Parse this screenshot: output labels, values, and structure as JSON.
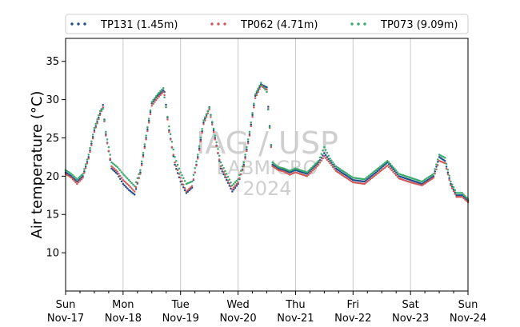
{
  "chart_data": {
    "type": "scatter",
    "title": "",
    "xlabel": "",
    "ylabel": "Air temperature (°C)",
    "ylim": [
      5,
      38
    ],
    "xlim": [
      0,
      7
    ],
    "yticks": [
      10,
      15,
      20,
      25,
      30,
      35
    ],
    "xticks": [
      {
        "day": 0,
        "label1": "Sun",
        "label2": "Nov-17"
      },
      {
        "day": 1,
        "label1": "Mon",
        "label2": "Nov-18"
      },
      {
        "day": 2,
        "label1": "Tue",
        "label2": "Nov-19"
      },
      {
        "day": 3,
        "label1": "Wed",
        "label2": "Nov-20"
      },
      {
        "day": 4,
        "label1": "Thu",
        "label2": "Nov-21"
      },
      {
        "day": 5,
        "label1": "Fri",
        "label2": "Nov-22"
      },
      {
        "day": 6,
        "label1": "Sat",
        "label2": "Nov-23"
      },
      {
        "day": 7,
        "label1": "Sun",
        "label2": "Nov-24"
      }
    ],
    "grid": "vertical",
    "legend_position": "top",
    "watermark": [
      "IAG / USP",
      "LABMICRO",
      "2024"
    ],
    "series": [
      {
        "name": "TP131 (1.45m)",
        "color": "#1f4e8c",
        "x": [
          0.0,
          0.1,
          0.2,
          0.3,
          0.4,
          0.5,
          0.6,
          0.65,
          0.7,
          0.8,
          0.9,
          1.0,
          1.1,
          1.2,
          1.3,
          1.4,
          1.5,
          1.6,
          1.7,
          1.72,
          1.8,
          1.9,
          2.0,
          2.1,
          2.2,
          2.3,
          2.4,
          2.5,
          2.6,
          2.7,
          2.8,
          2.9,
          3.0,
          3.1,
          3.2,
          3.3,
          3.4,
          3.5,
          3.6,
          3.7,
          3.8,
          3.9,
          4.0,
          4.2,
          4.4,
          4.5,
          4.6,
          4.7,
          4.8,
          5.0,
          5.2,
          5.4,
          5.6,
          5.8,
          6.0,
          6.2,
          6.4,
          6.5,
          6.6,
          6.7,
          6.8,
          6.9,
          7.0
        ],
        "y": [
          20.5,
          20.0,
          19.3,
          20.0,
          22.5,
          26.0,
          28.2,
          29.3,
          25.5,
          21.0,
          20.3,
          19.0,
          18.2,
          17.6,
          20.5,
          25.0,
          29.5,
          30.5,
          31.2,
          31.0,
          26.0,
          21.5,
          19.3,
          17.8,
          18.5,
          22.5,
          27.0,
          29.0,
          25.0,
          21.0,
          19.5,
          18.0,
          19.0,
          21.5,
          25.5,
          30.5,
          32.0,
          31.6,
          21.5,
          21.0,
          20.8,
          20.5,
          20.8,
          20.3,
          21.8,
          23.0,
          22.0,
          21.0,
          20.5,
          19.5,
          19.3,
          20.5,
          21.8,
          20.0,
          19.5,
          19.0,
          20.0,
          22.5,
          22.0,
          19.0,
          17.5,
          17.5,
          16.8
        ]
      },
      {
        "name": "TP062 (4.71m)",
        "color": "#d05a5a",
        "x": [
          0.0,
          0.1,
          0.2,
          0.3,
          0.4,
          0.5,
          0.6,
          0.65,
          0.7,
          0.8,
          0.9,
          1.0,
          1.1,
          1.2,
          1.3,
          1.4,
          1.5,
          1.6,
          1.7,
          1.72,
          1.8,
          1.9,
          2.0,
          2.1,
          2.2,
          2.3,
          2.4,
          2.5,
          2.6,
          2.7,
          2.8,
          2.9,
          3.0,
          3.1,
          3.2,
          3.3,
          3.4,
          3.5,
          3.6,
          3.7,
          3.8,
          3.9,
          4.0,
          4.2,
          4.4,
          4.5,
          4.6,
          4.7,
          4.8,
          5.0,
          5.2,
          5.4,
          5.6,
          5.8,
          6.0,
          6.2,
          6.4,
          6.5,
          6.6,
          6.7,
          6.8,
          6.9,
          7.0
        ],
        "y": [
          20.3,
          19.8,
          19.0,
          19.8,
          22.3,
          25.8,
          28.0,
          29.0,
          25.3,
          21.3,
          20.6,
          19.5,
          18.8,
          18.0,
          20.3,
          24.8,
          29.2,
          30.2,
          31.0,
          30.6,
          25.8,
          21.8,
          19.8,
          18.0,
          18.7,
          22.3,
          26.8,
          28.7,
          24.8,
          21.3,
          19.8,
          18.3,
          19.2,
          21.3,
          25.3,
          30.2,
          31.8,
          31.3,
          21.3,
          20.8,
          20.6,
          20.2,
          20.5,
          20.0,
          21.5,
          22.6,
          21.7,
          20.7,
          20.2,
          19.2,
          19.0,
          20.2,
          21.4,
          19.7,
          19.2,
          18.8,
          19.8,
          22.0,
          21.7,
          18.8,
          17.3,
          17.3,
          16.6
        ]
      },
      {
        "name": "TP073 (9.09m)",
        "color": "#3aaa6e",
        "x": [
          0.0,
          0.1,
          0.2,
          0.3,
          0.4,
          0.5,
          0.6,
          0.65,
          0.7,
          0.8,
          0.9,
          1.0,
          1.1,
          1.2,
          1.3,
          1.4,
          1.5,
          1.6,
          1.7,
          1.72,
          1.8,
          1.9,
          2.0,
          2.1,
          2.2,
          2.3,
          2.4,
          2.5,
          2.6,
          2.7,
          2.8,
          2.9,
          3.0,
          3.1,
          3.2,
          3.3,
          3.4,
          3.5,
          3.6,
          3.7,
          3.8,
          3.9,
          4.0,
          4.2,
          4.4,
          4.5,
          4.6,
          4.7,
          4.8,
          5.0,
          5.2,
          5.4,
          5.6,
          5.8,
          6.0,
          6.2,
          6.4,
          6.5,
          6.6,
          6.7,
          6.8,
          6.9,
          7.0
        ],
        "y": [
          20.8,
          20.3,
          19.6,
          20.3,
          22.8,
          26.3,
          28.5,
          28.8,
          25.8,
          21.8,
          21.2,
          20.3,
          19.5,
          18.7,
          20.8,
          25.3,
          29.7,
          30.7,
          31.5,
          30.3,
          26.5,
          22.5,
          20.5,
          19.0,
          19.3,
          22.8,
          27.3,
          28.9,
          25.3,
          21.8,
          20.3,
          18.8,
          19.6,
          21.8,
          25.8,
          30.7,
          32.2,
          31.0,
          21.8,
          21.2,
          21.0,
          20.7,
          21.0,
          20.5,
          22.0,
          23.8,
          22.3,
          21.3,
          20.8,
          19.8,
          19.6,
          20.8,
          22.0,
          20.3,
          19.8,
          19.3,
          20.3,
          22.8,
          22.4,
          19.3,
          17.8,
          17.8,
          17.0
        ]
      }
    ]
  }
}
